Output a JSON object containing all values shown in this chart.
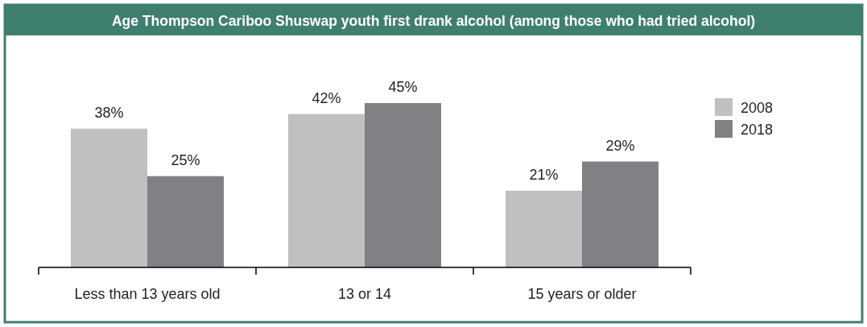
{
  "chart_data": {
    "type": "bar",
    "title": "Age Thompson Cariboo Shuswap youth first drank alcohol (among those who had tried alcohol)",
    "categories": [
      "Less than 13 years old",
      "13 or 14",
      "15 years or older"
    ],
    "series": [
      {
        "name": "2008",
        "color": "#bfc0c2",
        "values": [
          38,
          42,
          21
        ],
        "value_labels": [
          "38%",
          "42%",
          "21%"
        ]
      },
      {
        "name": "2018",
        "color": "#808184",
        "values": [
          25,
          45,
          29
        ],
        "value_labels": [
          "25%",
          "45%",
          "29%"
        ]
      }
    ],
    "ylim": [
      0,
      45
    ],
    "tick_labels": "x",
    "legend": "top right"
  }
}
